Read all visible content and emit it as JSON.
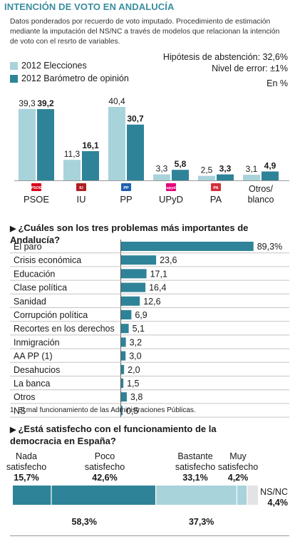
{
  "title": "INTENCIÓN DE VOTO EN ANDALUCÍA",
  "intro": "Datos ponderados por recuerdo de voto imputado. Procedimiento de estimación mediante la imputación del NS/NC a través de modelos que relacionan la intención de voto con el resrto de variables.",
  "notes": {
    "abstention": "Hipótesis de abstención: 32,6%",
    "error": "Nivel de error: ±1%",
    "unit": "En %"
  },
  "colors": {
    "light": "#a9d3db",
    "dark": "#2f8398",
    "axis": "#999999"
  },
  "chart_data": [
    {
      "type": "bar",
      "categories": [
        "PSOE",
        "IU",
        "PP",
        "UPyD",
        "PA",
        "Otros/ blanco"
      ],
      "series": [
        {
          "name": "2012 Elecciones",
          "values": [
            39.3,
            11.3,
            40.4,
            3.3,
            2.5,
            3.1
          ],
          "labels": [
            "39,3",
            "11,3",
            "40,4",
            "3,3",
            "2,5",
            "3,1"
          ]
        },
        {
          "name": "2012 Barómetro de opinión",
          "values": [
            39.2,
            16.1,
            30.7,
            5.8,
            3.3,
            4.9
          ],
          "labels": [
            "39,2",
            "16,1",
            "30,7",
            "5,8",
            "3,3",
            "4,9"
          ]
        }
      ],
      "legend": "top-left"
    },
    {
      "type": "bar",
      "orientation": "horizontal",
      "title": "¿Cuáles son los tres problemas más importantes de Andalucía?",
      "categories": [
        "El paro",
        "Crisis económica",
        "Educación",
        "Clase política",
        "Sanidad",
        "Corrupción política",
        "Recortes en los derechos",
        "Inmigración",
        "AA PP (1)",
        "Desahucios",
        "La banca",
        "Otros",
        "NS"
      ],
      "values": [
        89.3,
        23.6,
        17.1,
        16.4,
        12.6,
        6.9,
        5.1,
        3.2,
        3.0,
        2.0,
        1.5,
        3.8,
        0.5
      ],
      "labels": [
        "89,3%",
        "23,6",
        "17,1",
        "16,4",
        "12,6",
        "6,9",
        "5,1",
        "3,2",
        "3,0",
        "2,0",
        "1,5",
        "3,8",
        "0,5"
      ]
    },
    {
      "type": "bar",
      "orientation": "stacked-horizontal",
      "title": "¿Está satisfecho con el funcionamiento de la democracia en España?",
      "segments": [
        {
          "name": "Nada satisfecho",
          "value": 15.7,
          "label": "15,7%"
        },
        {
          "name": "Poco satisfecho",
          "value": 42.6,
          "label": "42,6%"
        },
        {
          "name": "Bastante satisfecho",
          "value": 33.1,
          "label": "33,1%"
        },
        {
          "name": "Muy satisfecho",
          "value": 4.2,
          "label": "4,2%"
        },
        {
          "name": "NS/NC",
          "value": 4.4,
          "label": "4,4%"
        }
      ],
      "totals": [
        {
          "value": 58.3,
          "label": "58,3%"
        },
        {
          "value": 37.3,
          "label": "37,3%"
        }
      ]
    }
  ],
  "footnote": "1. El mal funcionamiento de las Administraciones Públicas.",
  "logos": {
    "PSOE": {
      "text": "PSOE",
      "color": "#d6001c"
    },
    "IU": {
      "text": "IU",
      "color": "#b01f24"
    },
    "PP": {
      "text": "PP",
      "color": "#1d5fae"
    },
    "UPyD": {
      "text": "upyd",
      "color": "#e4007c"
    },
    "PA": {
      "text": "PA",
      "color": "#d3303a"
    }
  }
}
